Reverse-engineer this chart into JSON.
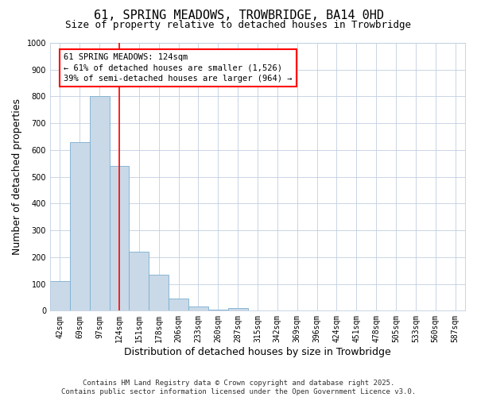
{
  "title": "61, SPRING MEADOWS, TROWBRIDGE, BA14 0HD",
  "subtitle": "Size of property relative to detached houses in Trowbridge",
  "xlabel": "Distribution of detached houses by size in Trowbridge",
  "ylabel": "Number of detached properties",
  "bar_color": "#c9d9e8",
  "bar_edge_color": "#7aaed0",
  "categories": [
    "42sqm",
    "69sqm",
    "97sqm",
    "124sqm",
    "151sqm",
    "178sqm",
    "206sqm",
    "233sqm",
    "260sqm",
    "287sqm",
    "315sqm",
    "342sqm",
    "369sqm",
    "396sqm",
    "424sqm",
    "451sqm",
    "478sqm",
    "505sqm",
    "533sqm",
    "560sqm",
    "587sqm"
  ],
  "values": [
    110,
    630,
    800,
    540,
    220,
    135,
    45,
    15,
    5,
    10,
    0,
    0,
    0,
    0,
    0,
    0,
    0,
    0,
    0,
    0,
    0
  ],
  "ylim": [
    0,
    1000
  ],
  "yticks": [
    0,
    100,
    200,
    300,
    400,
    500,
    600,
    700,
    800,
    900,
    1000
  ],
  "red_line_index": 3,
  "annotation_text": "61 SPRING MEADOWS: 124sqm\n← 61% of detached houses are smaller (1,526)\n39% of semi-detached houses are larger (964) →",
  "footer_line1": "Contains HM Land Registry data © Crown copyright and database right 2025.",
  "footer_line2": "Contains public sector information licensed under the Open Government Licence v3.0.",
  "title_fontsize": 11,
  "subtitle_fontsize": 9,
  "axis_label_fontsize": 9,
  "tick_fontsize": 7,
  "annotation_fontsize": 7.5,
  "footer_fontsize": 6.5,
  "background_color": "#ffffff",
  "grid_color": "#c0cfe0"
}
